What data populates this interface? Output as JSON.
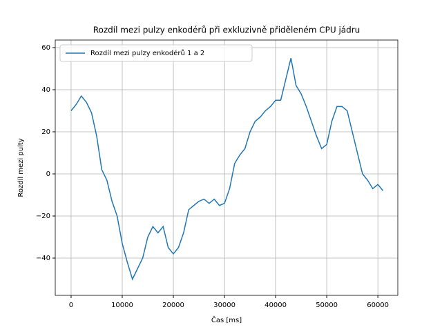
{
  "chart_data": {
    "type": "line",
    "title": "Rozdíl mezi pulzy enkodérů při exkluzivně přiděleném CPU jádru",
    "x_label": "Čas [ms]",
    "y_label": "Rozdíl mezi pulty",
    "x": [
      0,
      1000,
      2000,
      3000,
      4000,
      5000,
      6000,
      7000,
      8000,
      9000,
      10000,
      11000,
      12000,
      13000,
      14000,
      15000,
      16000,
      17000,
      18000,
      19000,
      20000,
      21000,
      22000,
      23000,
      24000,
      25000,
      26000,
      27000,
      28000,
      29000,
      30000,
      31000,
      32000,
      33000,
      34000,
      35000,
      36000,
      37000,
      38000,
      39000,
      40000,
      41000,
      42000,
      43000,
      44000,
      45000,
      46000,
      47000,
      48000,
      49000,
      50000,
      51000,
      52000,
      53000,
      54000,
      55000,
      56000,
      57000,
      58000,
      59000,
      60000,
      61000
    ],
    "series": [
      {
        "name": "Rozdíl mezi pulzy enkodérů 1 a 2",
        "color": "#1f77b4",
        "values": [
          30,
          33,
          37,
          34,
          29,
          18,
          2,
          -3,
          -13,
          -20,
          -33,
          -42,
          -50,
          -45,
          -40,
          -30,
          -25,
          -28,
          -25,
          -35,
          -38,
          -35,
          -28,
          -17,
          -15,
          -13,
          -12,
          -14,
          -12,
          -15,
          -14,
          -7,
          5,
          9,
          12,
          20,
          25,
          27,
          30,
          32,
          35,
          35,
          45,
          55,
          42,
          38,
          32,
          25,
          18,
          12,
          14,
          25,
          32,
          32,
          30,
          20,
          10,
          0,
          -3,
          -7,
          -5,
          -8
        ]
      }
    ],
    "xlim": [
      -3100,
      63900
    ],
    "ylim": [
      -57.7,
      63.6
    ],
    "xticks": [
      0,
      10000,
      20000,
      30000,
      40000,
      50000,
      60000
    ],
    "yticks": [
      {
        "value": -40,
        "label": "−40"
      },
      {
        "value": -20,
        "label": "−20"
      },
      0,
      20,
      40,
      60
    ],
    "grid": true,
    "legend": "upper-left"
  }
}
